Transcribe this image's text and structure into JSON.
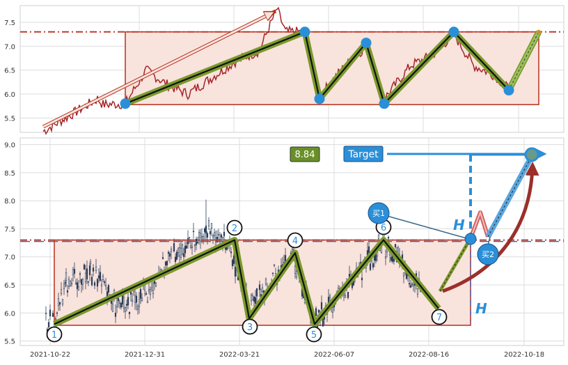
{
  "top_panel": {
    "chart_data": {
      "type": "line",
      "ylim": [
        5.2,
        7.85
      ],
      "yticks": [
        5.5,
        6.0,
        6.5,
        7.0,
        7.5
      ],
      "ytick_labels": [
        "5.5",
        "6.0",
        "6.5",
        "7.0",
        "7.5"
      ],
      "grid": true,
      "resistance_level": 7.3,
      "support_level": 5.78,
      "zigzag_points": [
        {
          "i": 0,
          "y": 5.8
        },
        {
          "i": 1,
          "y": 7.3
        },
        {
          "i": 2,
          "y": 5.9
        },
        {
          "i": 3,
          "y": 7.07
        },
        {
          "i": 4,
          "y": 5.8
        },
        {
          "i": 5,
          "y": 7.3
        },
        {
          "i": 6,
          "y": 6.08
        },
        {
          "i": 7,
          "y": 7.3
        }
      ]
    }
  },
  "bottom_panel": {
    "chart_data": {
      "type": "candlestick",
      "ylim": [
        5.42,
        9.12
      ],
      "yticks": [
        5.5,
        6.0,
        6.5,
        7.0,
        7.5,
        8.0,
        8.5,
        9.0
      ],
      "ytick_labels": [
        "5.5",
        "6.0",
        "6.5",
        "7.0",
        "7.5",
        "8.0",
        "8.5",
        "9.0"
      ],
      "x_tick_labels": [
        "2021-10-22",
        "2021-12-31",
        "2022-03-21",
        "2022-06-07",
        "2022-08-16",
        "2022-10-18"
      ],
      "grid": true,
      "resistance_level": 7.3,
      "support_level": 5.78,
      "target_level": 8.84,
      "zigzag_points": [
        {
          "label": "1",
          "y": 5.8
        },
        {
          "label": "2",
          "y": 7.3
        },
        {
          "label": "3",
          "y": 5.9
        },
        {
          "label": "4",
          "y": 7.07
        },
        {
          "label": "5",
          "y": 5.8
        },
        {
          "label": "6",
          "y": 7.3
        },
        {
          "label": "7",
          "y": 6.08
        }
      ],
      "annotations": {
        "target_value_label": "8.84",
        "target_label": "Target",
        "h_label": "H",
        "buy1_label": "买1",
        "buy2_label": "买2"
      }
    }
  },
  "colors": {
    "box_fill": "#f9e3dd",
    "box_stroke": "#b5301c",
    "price_line": "#a3262a",
    "zigzag_outer": "#7a9a2c",
    "zigzag_inner": "#111111",
    "marker_blue": "#2a8fd8",
    "target_box": "#2a8fd8",
    "value_box": "#6a8f2a",
    "curved_arrow": "#9b2f2a",
    "resistance_line": "#c0392b",
    "target_line": "#2a8fd8",
    "candle": "#2c3e58"
  }
}
